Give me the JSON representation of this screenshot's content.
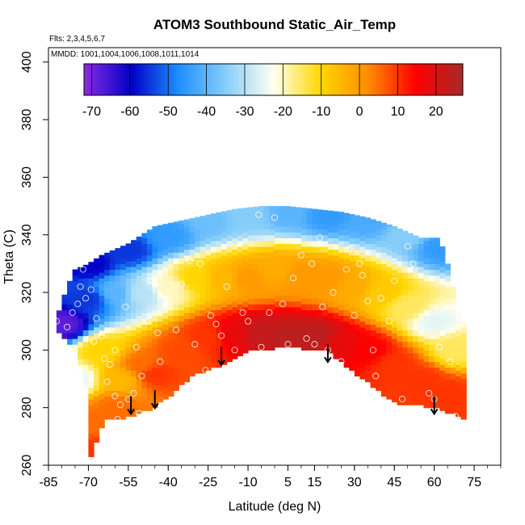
{
  "chart_data": {
    "type": "heatmap",
    "title": "ATOM3 Southbound Static_Air_Temp",
    "notes": [
      "Flts: 2,3,4,5,6,7",
      "MMDD: 1001,1004,1006,1008,1011,1014"
    ],
    "xlabel": "Latitude (deg N)",
    "ylabel": "Theta (C)",
    "xlim": [
      -85,
      85
    ],
    "ylim": [
      260,
      405
    ],
    "x_ticks": [
      -85,
      -70,
      -55,
      -40,
      -25,
      -10,
      5,
      15,
      30,
      45,
      60,
      75
    ],
    "y_ticks": [
      260,
      280,
      300,
      320,
      340,
      360,
      380,
      400
    ],
    "colorbar": {
      "range": [
        -72,
        27
      ],
      "ticks": [
        -70,
        -60,
        -50,
        -40,
        -30,
        -20,
        -10,
        0,
        10,
        20
      ],
      "colors": [
        "#8a2be2",
        "#0000c8",
        "#1e90ff",
        "#87cefa",
        "#fffff0",
        "#ffd700",
        "#ff8c00",
        "#ff0000",
        "#a52a2a"
      ]
    },
    "field": {
      "top_boundary": [
        [
          -82,
          311
        ],
        [
          -78,
          322
        ],
        [
          -75,
          328
        ],
        [
          -70,
          330
        ],
        [
          -65,
          333
        ],
        [
          -55,
          337
        ],
        [
          -45,
          343
        ],
        [
          -35,
          345
        ],
        [
          -25,
          347
        ],
        [
          -15,
          349
        ],
        [
          -5,
          350
        ],
        [
          5,
          350
        ],
        [
          15,
          349
        ],
        [
          25,
          348
        ],
        [
          35,
          346
        ],
        [
          45,
          343
        ],
        [
          55,
          339
        ],
        [
          62,
          339
        ],
        [
          65,
          330
        ],
        [
          70,
          310
        ]
      ],
      "bottom_boundary": [
        [
          -82,
          308
        ],
        [
          -75,
          300
        ],
        [
          -71,
          287
        ],
        [
          -69,
          263
        ],
        [
          -67,
          268
        ],
        [
          -64,
          276
        ],
        [
          -58,
          276
        ],
        [
          -52,
          278
        ],
        [
          -46,
          280
        ],
        [
          -40,
          284
        ],
        [
          -35,
          288
        ],
        [
          -30,
          292
        ],
        [
          -20,
          295
        ],
        [
          -10,
          300
        ],
        [
          0,
          301
        ],
        [
          10,
          301
        ],
        [
          20,
          300
        ],
        [
          28,
          294
        ],
        [
          35,
          289
        ],
        [
          45,
          282
        ],
        [
          55,
          281
        ],
        [
          62,
          280
        ],
        [
          72,
          276
        ]
      ],
      "center_points": [
        [
          -75,
          290,
          -25
        ],
        [
          -65,
          300,
          -10
        ],
        [
          -58,
          290,
          -5
        ],
        [
          -50,
          295,
          5
        ],
        [
          -45,
          292,
          10
        ],
        [
          -35,
          300,
          8
        ],
        [
          -25,
          305,
          10
        ],
        [
          -15,
          306,
          18
        ],
        [
          -5,
          306,
          23
        ],
        [
          5,
          305,
          24
        ],
        [
          15,
          305,
          24
        ],
        [
          25,
          302,
          18
        ],
        [
          35,
          300,
          15
        ],
        [
          45,
          295,
          10
        ],
        [
          55,
          290,
          10
        ],
        [
          65,
          285,
          10
        ],
        [
          -70,
          318,
          -55
        ],
        [
          -60,
          320,
          -40
        ],
        [
          -50,
          320,
          -30
        ],
        [
          -40,
          322,
          -20
        ],
        [
          -30,
          325,
          -10
        ],
        [
          -20,
          325,
          -5
        ],
        [
          -10,
          325,
          0
        ],
        [
          0,
          328,
          -3
        ],
        [
          10,
          326,
          0
        ],
        [
          20,
          325,
          0
        ],
        [
          30,
          322,
          -3
        ],
        [
          40,
          320,
          -8
        ],
        [
          50,
          315,
          -15
        ],
        [
          60,
          310,
          -25
        ],
        [
          -70,
          330,
          -60
        ],
        [
          -55,
          335,
          -55
        ],
        [
          -40,
          340,
          -45
        ],
        [
          -25,
          345,
          -38
        ],
        [
          -10,
          347,
          -35
        ],
        [
          5,
          348,
          -40
        ],
        [
          20,
          347,
          -45
        ],
        [
          35,
          345,
          -42
        ],
        [
          50,
          340,
          -35
        ],
        [
          62,
          336,
          -45
        ],
        [
          68,
          300,
          -15
        ],
        [
          -80,
          309,
          -68
        ],
        [
          -68,
          275,
          5
        ],
        [
          -67,
          265,
          10
        ],
        [
          -60,
          280,
          5
        ]
      ],
      "markers_lat_theta": [
        [
          -82,
          310
        ],
        [
          -78,
          308
        ],
        [
          -76,
          313
        ],
        [
          -74,
          316
        ],
        [
          -73,
          322
        ],
        [
          -72,
          328
        ],
        [
          -71,
          318
        ],
        [
          -69,
          321
        ],
        [
          -68,
          303
        ],
        [
          -67,
          311
        ],
        [
          -65,
          305
        ],
        [
          -64,
          297
        ],
        [
          -63,
          289
        ],
        [
          -62,
          295
        ],
        [
          -60,
          300
        ],
        [
          -60,
          284
        ],
        [
          -59,
          276
        ],
        [
          -58,
          281
        ],
        [
          -56,
          315
        ],
        [
          -55,
          283
        ],
        [
          -53,
          285
        ],
        [
          -52,
          301
        ],
        [
          -51,
          278
        ],
        [
          -50,
          291
        ],
        [
          -48,
          310
        ],
        [
          -47,
          324
        ],
        [
          -44,
          306
        ],
        [
          -43,
          296
        ],
        [
          -40,
          315
        ],
        [
          -37,
          307
        ],
        [
          -35,
          323
        ],
        [
          -32,
          331
        ],
        [
          -30,
          302
        ],
        [
          -28,
          330
        ],
        [
          -26,
          293
        ],
        [
          -24,
          312
        ],
        [
          -22,
          309
        ],
        [
          -20,
          305
        ],
        [
          -18,
          322
        ],
        [
          -15,
          300
        ],
        [
          -12,
          313
        ],
        [
          -10,
          310
        ],
        [
          -6,
          347
        ],
        [
          -5,
          301
        ],
        [
          -2,
          313
        ],
        [
          0,
          346
        ],
        [
          3,
          316
        ],
        [
          5,
          302
        ],
        [
          7,
          325
        ],
        [
          10,
          333
        ],
        [
          12,
          304
        ],
        [
          14,
          330
        ],
        [
          15,
          302
        ],
        [
          17,
          339
        ],
        [
          18,
          315
        ],
        [
          20,
          300
        ],
        [
          22,
          320
        ],
        [
          25,
          296
        ],
        [
          27,
          328
        ],
        [
          28,
          335
        ],
        [
          30,
          312
        ],
        [
          32,
          330
        ],
        [
          33,
          326
        ],
        [
          35,
          317
        ],
        [
          37,
          300
        ],
        [
          38,
          291
        ],
        [
          40,
          318
        ],
        [
          43,
          310
        ],
        [
          45,
          324
        ],
        [
          48,
          283
        ],
        [
          50,
          336
        ],
        [
          52,
          330
        ],
        [
          55,
          307
        ],
        [
          58,
          285
        ],
        [
          60,
          283
        ],
        [
          62,
          301
        ],
        [
          66,
          296
        ],
        [
          68,
          277
        ]
      ],
      "arrows_lat_theta": [
        [
          -54,
          284
        ],
        [
          -45,
          286
        ],
        [
          -20,
          301
        ],
        [
          20,
          302
        ],
        [
          60,
          284
        ]
      ]
    }
  }
}
